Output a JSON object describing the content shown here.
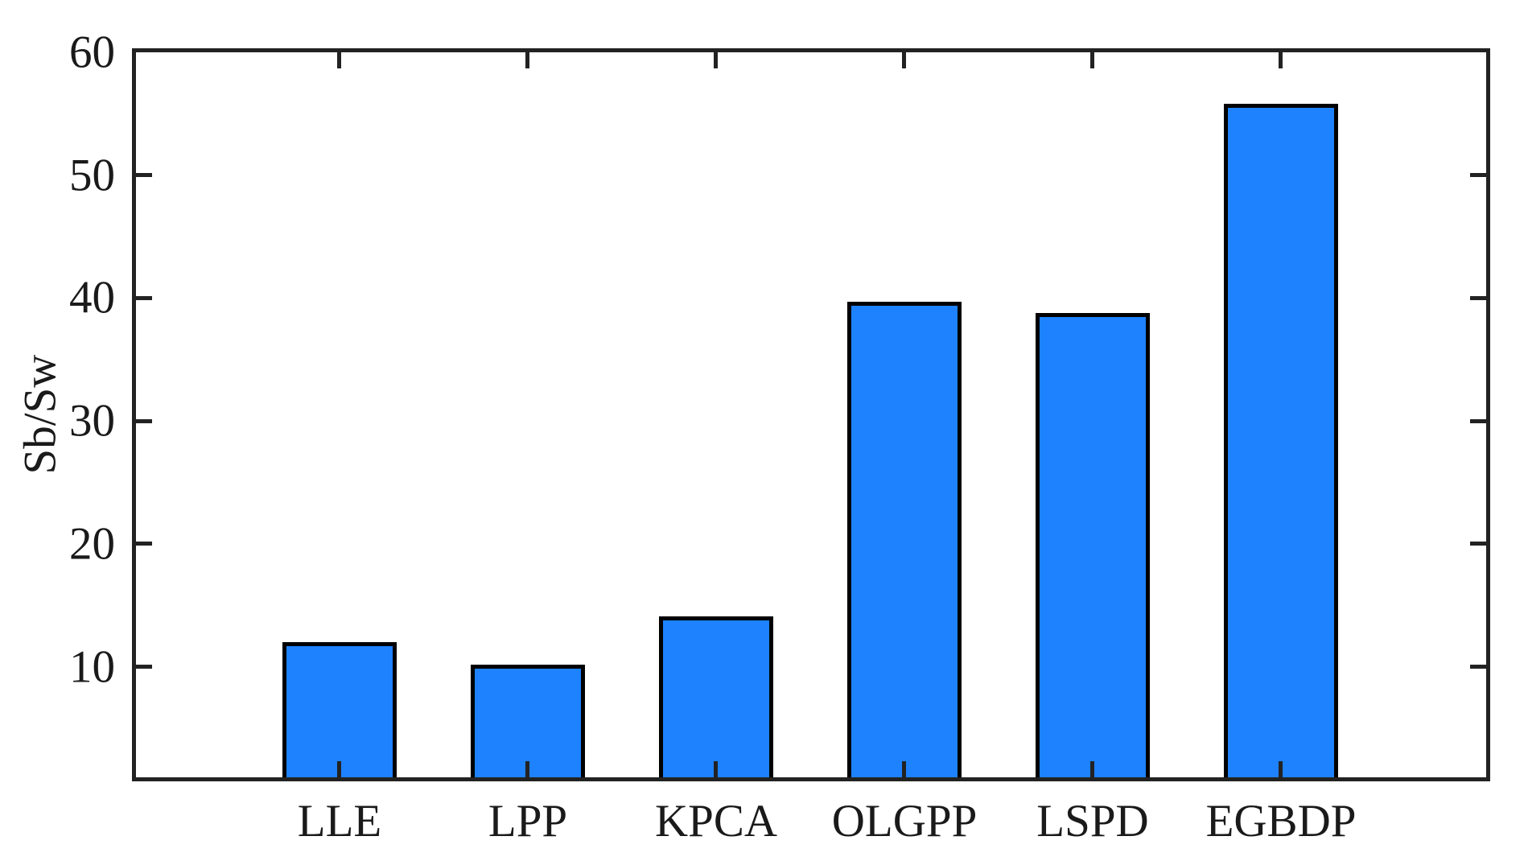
{
  "chart_data": {
    "type": "bar",
    "categories": [
      "LLE",
      "LPP",
      "KPCA",
      "OLGPP",
      "LSPD",
      "EGBDP"
    ],
    "values": [
      12.0,
      10.2,
      14.1,
      39.7,
      38.8,
      55.8
    ],
    "title": "",
    "xlabel": "",
    "ylabel": "Sb/Sw",
    "ylim": [
      1,
      60
    ],
    "yticks": [
      10,
      20,
      30,
      40,
      50,
      60
    ],
    "grid": false,
    "legend": null,
    "bar_color": "#1E82FF",
    "bar_edge_color": "#000000",
    "axis_color": "#222222",
    "text_color": "#1a1a1a",
    "background": "#ffffff"
  }
}
